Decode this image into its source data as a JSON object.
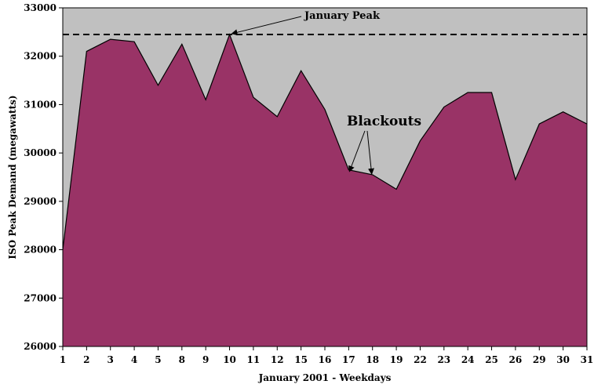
{
  "chart_data": {
    "type": "area",
    "title": "",
    "xlabel": "January 2001 - Weekdays",
    "ylabel": "ISO Peak Demand (megawatts)",
    "categories": [
      "1",
      "2",
      "3",
      "4",
      "5",
      "8",
      "9",
      "10",
      "11",
      "12",
      "15",
      "16",
      "17",
      "18",
      "19",
      "22",
      "23",
      "24",
      "25",
      "26",
      "29",
      "30",
      "31"
    ],
    "series": [
      {
        "values": [
          28000,
          32100,
          32350,
          32300,
          31400,
          32250,
          31100,
          32450,
          31150,
          30750,
          31700,
          30900,
          29650,
          29550,
          29250,
          30250,
          30950,
          31250,
          31250,
          29450,
          30600,
          30850,
          30600
        ]
      }
    ],
    "ylim": [
      26000,
      33000
    ],
    "yticks": [
      "26000",
      "27000",
      "28000",
      "29000",
      "30000",
      "31000",
      "32000",
      "33000"
    ],
    "reference_line": {
      "value": 32450,
      "style": "dashed"
    },
    "annotations": {
      "peak_label": "January Peak",
      "blackouts_label": "Blackouts"
    },
    "colors": {
      "plot_background": "#c0c0c0",
      "area_fill": "#993366",
      "area_stroke": "#000000",
      "reference_line": "#000000"
    },
    "grid": false,
    "legend": "none"
  }
}
